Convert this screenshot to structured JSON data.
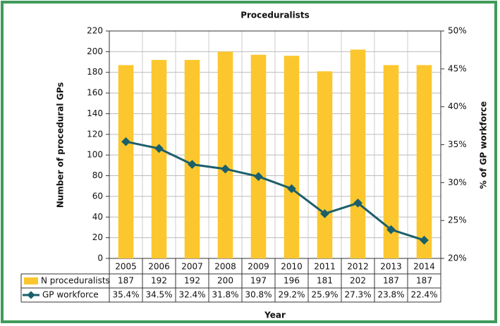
{
  "chart_data": {
    "type": "bar",
    "title": "Proceduralists",
    "y_label": "Number of procedural GPs",
    "y2_label": "% of GP workforce",
    "x_label": "Year",
    "categories": [
      "2005",
      "2006",
      "2007",
      "2008",
      "2009",
      "2010",
      "2011",
      "2012",
      "2013",
      "2014"
    ],
    "series": [
      {
        "name": "N proceduralists",
        "type": "bar",
        "color": "#fcc72e",
        "values": [
          187,
          192,
          192,
          200,
          197,
          196,
          181,
          202,
          187,
          187
        ]
      },
      {
        "name": "GP workforce",
        "type": "line",
        "axis": "y2",
        "color": "#1b5f6b",
        "values": [
          35.4,
          34.5,
          32.4,
          31.8,
          30.8,
          29.2,
          25.9,
          27.3,
          23.8,
          22.4
        ],
        "value_labels": [
          "35.4%",
          "34.5%",
          "32.4%",
          "31.8%",
          "30.8%",
          "29.2%",
          "25.9%",
          "27.3%",
          "23.8%",
          "22.4%"
        ]
      }
    ],
    "ylim": [
      0,
      220
    ],
    "yticks": [
      0,
      20,
      40,
      60,
      80,
      100,
      120,
      140,
      160,
      180,
      200,
      220
    ],
    "y2lim": [
      20,
      50
    ],
    "y2ticks": [
      {
        "value": 20,
        "label": "20%"
      },
      {
        "value": 25,
        "label": "25%"
      },
      {
        "value": 30,
        "label": "30%"
      },
      {
        "value": 35,
        "label": "35%"
      },
      {
        "value": 40,
        "label": "40%"
      },
      {
        "value": 45,
        "label": "45%"
      },
      {
        "value": 50,
        "label": "50%"
      }
    ],
    "grid": true
  }
}
